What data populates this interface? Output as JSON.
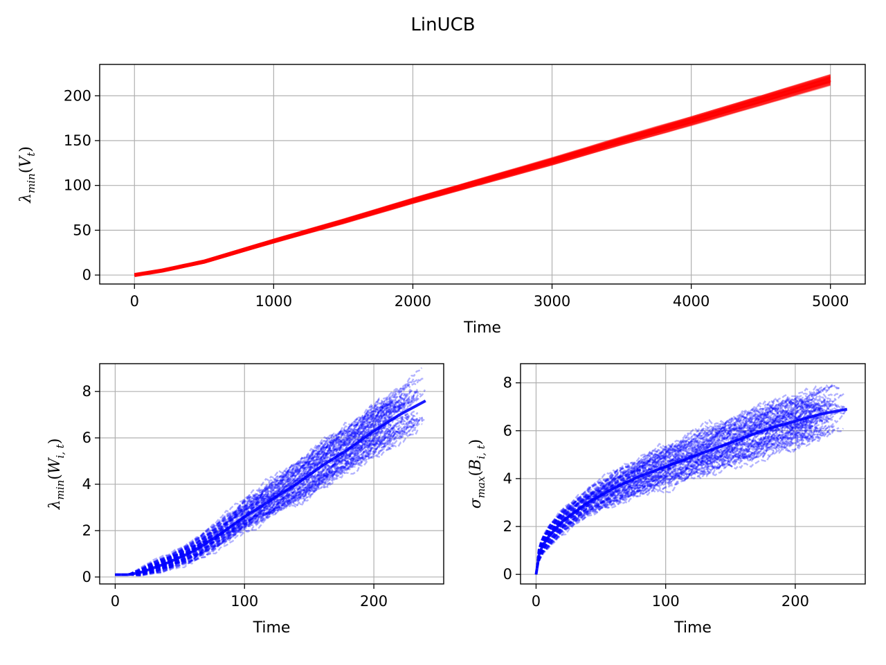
{
  "figure": {
    "title": "LinUCB"
  },
  "chart_data": [
    {
      "type": "line",
      "panel": "top",
      "xlabel": "Time",
      "ylabel": {
        "base": "λ",
        "sub": "min",
        "arg": "V",
        "arg_sub": "t"
      },
      "xlim": [
        -250,
        5250
      ],
      "ylim": [
        -10,
        235
      ],
      "xticks": [
        0,
        1000,
        2000,
        3000,
        4000,
        5000
      ],
      "yticks": [
        0,
        50,
        100,
        150,
        200
      ],
      "grid": true,
      "color": "#ff0000",
      "series": [
        {
          "x": [
            0,
            200,
            500,
            1000,
            1500,
            2000,
            2500,
            3000,
            3500,
            4000,
            4500,
            5000
          ],
          "y": [
            0,
            5,
            15,
            38,
            60,
            83,
            105,
            127,
            150,
            172,
            195,
            218
          ],
          "band": [
            1,
            1,
            1.5,
            2,
            2.5,
            3,
            3.5,
            4,
            4.5,
            5,
            5.5,
            6
          ]
        }
      ]
    },
    {
      "type": "line",
      "panel": "bottom-left",
      "xlabel": "Time",
      "ylabel": {
        "base": "λ",
        "sub": "min",
        "arg": "W",
        "arg_sub": "i, t"
      },
      "xlim": [
        -12,
        254
      ],
      "ylim": [
        -0.3,
        9.2
      ],
      "xticks": [
        0,
        100,
        200
      ],
      "yticks": [
        0,
        2,
        4,
        6,
        8
      ],
      "grid": true,
      "color": "#0000ff",
      "series": [
        {
          "x": [
            0,
            10,
            20,
            40,
            60,
            80,
            100,
            120,
            140,
            160,
            180,
            200,
            220,
            240
          ],
          "y": [
            0.1,
            0.1,
            0.2,
            0.6,
            1.1,
            1.8,
            2.6,
            3.3,
            4.0,
            4.8,
            5.5,
            6.3,
            7.0,
            7.6
          ],
          "band": [
            0,
            0,
            0.15,
            0.3,
            0.45,
            0.55,
            0.65,
            0.75,
            0.85,
            0.95,
            1.0,
            1.05,
            1.1,
            1.1
          ]
        }
      ]
    },
    {
      "type": "line",
      "panel": "bottom-right",
      "xlabel": "Time",
      "ylabel": {
        "base": "σ",
        "sub": "max",
        "arg": "B",
        "arg_sub": "i, t"
      },
      "xlim": [
        -12,
        254
      ],
      "ylim": [
        -0.4,
        8.8
      ],
      "xticks": [
        0,
        100,
        200
      ],
      "yticks": [
        0,
        2,
        4,
        6,
        8
      ],
      "grid": true,
      "color": "#0000ff",
      "series": [
        {
          "x": [
            0,
            2,
            5,
            10,
            20,
            40,
            60,
            80,
            100,
            120,
            140,
            160,
            180,
            200,
            220,
            240
          ],
          "y": [
            0,
            0.8,
            1.2,
            1.6,
            2.2,
            3.0,
            3.6,
            4.1,
            4.5,
            4.9,
            5.3,
            5.7,
            6.1,
            6.4,
            6.7,
            6.9
          ],
          "band": [
            0,
            0.3,
            0.35,
            0.4,
            0.45,
            0.5,
            0.6,
            0.7,
            0.8,
            0.85,
            0.9,
            0.95,
            1.0,
            1.0,
            1.0,
            0.9
          ]
        }
      ]
    }
  ]
}
